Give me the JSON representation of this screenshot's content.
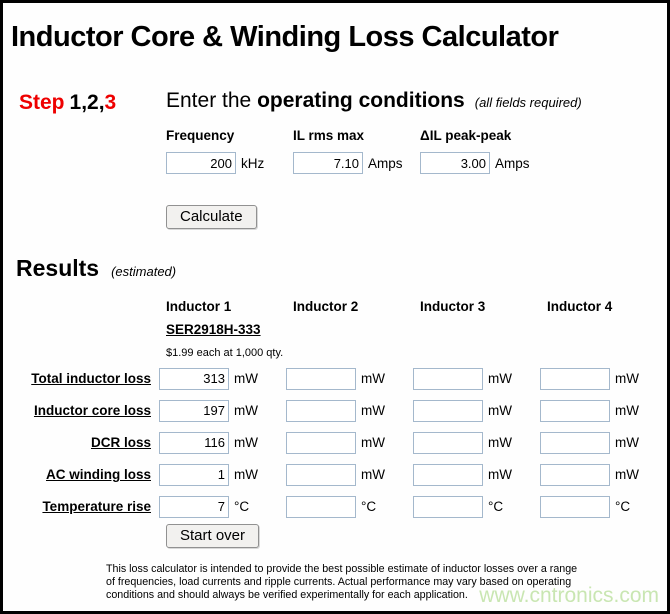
{
  "page": {
    "title": "Inductor Core & Winding Loss Calculator",
    "watermark": "www.cntronics.com"
  },
  "step": {
    "word": "Step",
    "done": "1,2,",
    "current": "3",
    "heading_prefix": "Enter the",
    "heading_bold": "operating conditions",
    "heading_note": "(all fields required)"
  },
  "conditions": {
    "fields": [
      {
        "label": "Frequency",
        "value": "200",
        "unit": "kHz"
      },
      {
        "label": "IL rms max",
        "value": "7.10",
        "unit": "Amps"
      },
      {
        "label": "ΔIL peak-peak",
        "value": "3.00",
        "unit": "Amps"
      }
    ],
    "calculate_label": "Calculate"
  },
  "results": {
    "heading": "Results",
    "heading_note": "(estimated)",
    "columns": [
      "Inductor 1",
      "Inductor 2",
      "Inductor 3",
      "Inductor 4"
    ],
    "part": {
      "name": "SER2918H-333",
      "price": "$1.99 each at 1,000 qty."
    },
    "rows": [
      {
        "label": "Total inductor loss",
        "unit": "mW",
        "values": [
          "313",
          "",
          "",
          ""
        ]
      },
      {
        "label": "Inductor core loss",
        "unit": "mW",
        "values": [
          "197",
          "",
          "",
          ""
        ]
      },
      {
        "label": "DCR loss",
        "unit": "mW",
        "values": [
          "116",
          "",
          "",
          ""
        ]
      },
      {
        "label": "AC winding loss",
        "unit": "mW",
        "values": [
          "1",
          "",
          "",
          ""
        ]
      },
      {
        "label": "Temperature rise",
        "unit": "°C",
        "values": [
          "7",
          "",
          "",
          ""
        ]
      }
    ],
    "start_over_label": "Start over"
  },
  "footer": {
    "disclaimer": "This loss calculator is intended to provide the best possible estimate of inductor losses over a range of frequencies, load currents and ripple currents. Actual performance may vary based on operating conditions and should always be verified experimentally for each application."
  },
  "colors": {
    "step_highlight_red": "#ee0000",
    "input_border_blue": "#a4b8cc",
    "watermark_green": "#c9e6b2"
  }
}
